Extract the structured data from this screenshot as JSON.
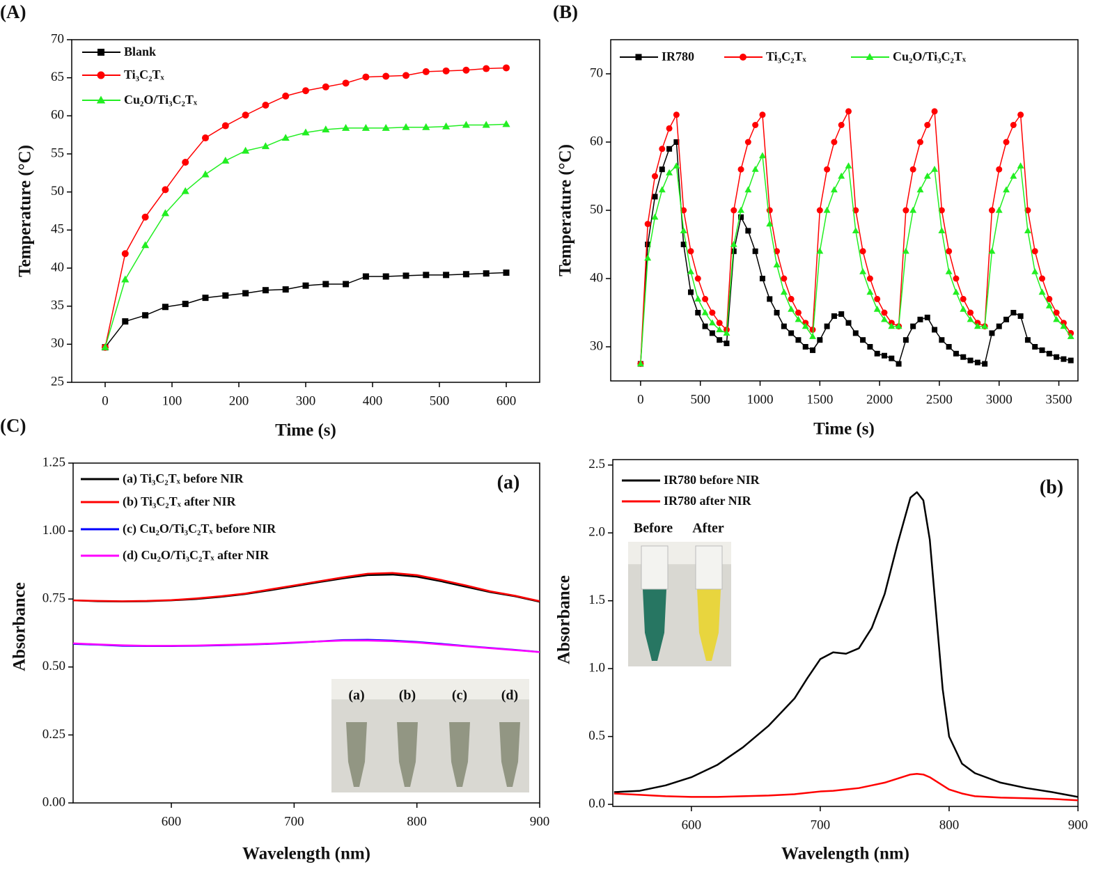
{
  "chart_data": [
    {
      "type": "line",
      "panel_label": "(A)",
      "x_label": "Time (s)",
      "y_label": "Temperature (°C)",
      "x": [
        0,
        30,
        60,
        90,
        120,
        150,
        180,
        210,
        240,
        270,
        300,
        330,
        360,
        390,
        420,
        450,
        480,
        510,
        540,
        570,
        600
      ],
      "xlim": [
        -50,
        650
      ],
      "xticks": [
        0,
        100,
        200,
        300,
        400,
        500,
        600
      ],
      "ylim": [
        25,
        70
      ],
      "yticks": [
        25,
        30,
        35,
        40,
        45,
        50,
        55,
        60,
        65,
        70
      ],
      "legend": "upper left",
      "series": [
        {
          "name": "Blank",
          "color": "#000000",
          "marker": "square",
          "values": [
            29.6,
            33,
            33.8,
            34.9,
            35.3,
            36.1,
            36.4,
            36.7,
            37.1,
            37.2,
            37.7,
            37.9,
            37.9,
            38.9,
            38.9,
            39.0,
            39.1,
            39.1,
            39.2,
            39.3,
            39.4
          ]
        },
        {
          "name": "Ti₃C₂Tₓ",
          "color": "#ff0000",
          "marker": "circle",
          "values": [
            29.6,
            41.9,
            46.7,
            50.3,
            53.9,
            57.1,
            58.7,
            60.1,
            61.4,
            62.6,
            63.3,
            63.8,
            64.3,
            65.1,
            65.2,
            65.3,
            65.8,
            65.9,
            66.0,
            66.2,
            66.3
          ]
        },
        {
          "name": "Cu₂O/Ti₃C₂Tₓ",
          "color": "#22ee22",
          "marker": "triangle",
          "values": [
            29.6,
            38.5,
            43.0,
            47.2,
            50.1,
            52.3,
            54.1,
            55.4,
            56.0,
            57.1,
            57.8,
            58.2,
            58.4,
            58.4,
            58.4,
            58.5,
            58.5,
            58.6,
            58.8,
            58.8,
            58.9
          ]
        }
      ]
    },
    {
      "type": "line",
      "panel_label": "(B)",
      "x_label": "Time (s)",
      "y_label": "Temperature (°C)",
      "x": [
        0,
        60,
        120,
        180,
        240,
        300,
        360,
        420,
        480,
        540,
        600,
        660,
        720,
        780,
        840,
        900,
        960,
        1020,
        1080,
        1140,
        1200,
        1260,
        1320,
        1380,
        1440,
        1500,
        1560,
        1620,
        1680,
        1740,
        1800,
        1860,
        1920,
        1980,
        2040,
        2100,
        2160,
        2220,
        2280,
        2340,
        2400,
        2460,
        2520,
        2580,
        2640,
        2700,
        2760,
        2820,
        2880,
        2940,
        3000,
        3060,
        3120,
        3180,
        3240,
        3300,
        3360,
        3420,
        3480,
        3540,
        3600
      ],
      "xlim": [
        -250,
        3660
      ],
      "xticks": [
        0,
        500,
        1000,
        1500,
        2000,
        2500,
        3000,
        3500
      ],
      "ylim": [
        25,
        75
      ],
      "yticks": [
        30,
        40,
        50,
        60,
        70
      ],
      "legend": "upper left",
      "series": [
        {
          "name": "IR780",
          "color": "#000000",
          "marker": "square",
          "values": [
            27.5,
            45,
            52,
            56,
            59,
            60,
            45,
            38,
            35,
            33,
            32,
            31,
            30.5,
            44,
            49,
            47,
            44,
            40,
            37,
            35,
            33,
            32,
            31,
            30,
            29.5,
            31,
            33,
            34.5,
            34.8,
            33.5,
            32,
            31,
            30,
            29,
            28.7,
            28.3,
            27.5,
            31,
            33,
            34,
            34.3,
            32.5,
            31,
            30,
            29,
            28.5,
            28,
            27.7,
            27.5,
            32,
            33,
            34,
            35,
            34.5,
            31,
            30,
            29.5,
            29,
            28.5,
            28.2,
            28
          ]
        },
        {
          "name": "Ti₃C₂Tₓ",
          "color": "#ff0000",
          "marker": "circle",
          "values": [
            27.5,
            48,
            55,
            59,
            62,
            64,
            50,
            44,
            40,
            37,
            35,
            33.5,
            32.5,
            50,
            56,
            60,
            62.5,
            64,
            50,
            44,
            40,
            37,
            35,
            33.5,
            32.5,
            50,
            56,
            60,
            62.5,
            64.5,
            50,
            44,
            40,
            37,
            35,
            33.5,
            33,
            50,
            56,
            60,
            62.5,
            64.5,
            50,
            44,
            40,
            37,
            35,
            33.5,
            33,
            50,
            56,
            60,
            62.5,
            64,
            50,
            44,
            40,
            37,
            35,
            33.5,
            32
          ]
        },
        {
          "name": "Cu₂O/Ti₃C₂Tₓ",
          "color": "#22ee22",
          "marker": "triangle",
          "values": [
            27.5,
            43,
            49,
            53,
            55.5,
            56.5,
            47,
            41,
            37,
            35,
            33.5,
            32.5,
            32,
            45,
            50,
            53,
            56,
            58,
            48,
            42,
            38,
            35.5,
            34,
            33,
            31.5,
            44,
            50,
            53,
            55,
            56.5,
            47,
            41,
            38,
            35.5,
            34,
            33,
            33,
            44,
            50,
            53,
            55,
            56,
            47,
            41,
            38,
            35.5,
            34,
            33,
            33,
            44,
            50,
            53,
            55,
            56.5,
            47,
            41,
            38,
            36,
            34,
            33,
            31.5
          ]
        }
      ]
    },
    {
      "type": "line",
      "panel_label": "(C)",
      "annotation": "(a)",
      "x_label": "Wavelength (nm)",
      "y_label": "Absorbance",
      "inset_labels": [
        "(a)",
        "(b)",
        "(c)",
        "(d)"
      ],
      "x": [
        520,
        540,
        560,
        580,
        600,
        620,
        640,
        660,
        680,
        700,
        720,
        740,
        760,
        780,
        800,
        820,
        840,
        860,
        880,
        900
      ],
      "xlim": [
        520,
        900
      ],
      "xticks": [
        600,
        700,
        800,
        900
      ],
      "ylim": [
        0,
        1.25
      ],
      "yticks": [
        {
          "value": 0,
          "label": "0.00"
        },
        0.25,
        {
          "value": 0.5,
          "label": "0.50"
        },
        0.75,
        {
          "value": 1,
          "label": "1.00"
        },
        1.25
      ],
      "legend": "upper left",
      "series": [
        {
          "name": "(a) Ti₃C₂Tₓ  before NIR",
          "color": "#000000",
          "values": [
            0.745,
            0.742,
            0.741,
            0.742,
            0.745,
            0.75,
            0.758,
            0.768,
            0.782,
            0.797,
            0.812,
            0.826,
            0.838,
            0.84,
            0.832,
            0.815,
            0.795,
            0.775,
            0.76,
            0.74
          ]
        },
        {
          "name": "(b) Ti₃C₂Tₓ  after NIR",
          "color": "#ff0000",
          "values": [
            0.745,
            0.743,
            0.742,
            0.743,
            0.746,
            0.752,
            0.76,
            0.77,
            0.785,
            0.8,
            0.815,
            0.83,
            0.843,
            0.846,
            0.838,
            0.82,
            0.8,
            0.778,
            0.762,
            0.742
          ]
        },
        {
          "name": "(c) Cu₂O/Ti₃C₂Tₓ  before NIR",
          "color": "#0000ff",
          "values": [
            0.585,
            0.582,
            0.578,
            0.577,
            0.577,
            0.578,
            0.58,
            0.582,
            0.585,
            0.589,
            0.594,
            0.599,
            0.6,
            0.597,
            0.592,
            0.585,
            0.577,
            0.57,
            0.563,
            0.555
          ]
        },
        {
          "name": "(d) Cu₂O/Ti₃C₂Tₓ  after NIR",
          "color": "#ff00ff",
          "values": [
            0.587,
            0.583,
            0.58,
            0.578,
            0.578,
            0.579,
            0.581,
            0.583,
            0.586,
            0.59,
            0.594,
            0.597,
            0.597,
            0.595,
            0.59,
            0.583,
            0.576,
            0.569,
            0.562,
            0.555
          ]
        }
      ]
    },
    {
      "type": "line",
      "annotation": "(b)",
      "x_label": "Wavelength (nm)",
      "y_label": "Absorbance",
      "inset_labels": [
        "Before",
        "After"
      ],
      "x": [
        540,
        560,
        580,
        600,
        620,
        640,
        660,
        680,
        690,
        700,
        710,
        720,
        730,
        740,
        750,
        760,
        770,
        775,
        780,
        785,
        790,
        795,
        800,
        810,
        820,
        840,
        860,
        880,
        900
      ],
      "xlim": [
        539,
        900
      ],
      "xticks": [
        600,
        700,
        800,
        900
      ],
      "ylim": [
        -0.015,
        2.54
      ],
      "yticks": [
        {
          "value": 0,
          "label": "0.0"
        },
        0.5,
        {
          "value": 1,
          "label": "1.0"
        },
        1.5,
        {
          "value": 2,
          "label": "2.0"
        },
        2.5
      ],
      "legend": "upper left",
      "series": [
        {
          "name": "IR780 before NIR",
          "color": "#000000",
          "values": [
            0.09,
            0.1,
            0.14,
            0.2,
            0.29,
            0.42,
            0.58,
            0.78,
            0.93,
            1.07,
            1.12,
            1.11,
            1.15,
            1.3,
            1.55,
            1.92,
            2.26,
            2.3,
            2.24,
            1.95,
            1.4,
            0.85,
            0.5,
            0.3,
            0.23,
            0.16,
            0.12,
            0.09,
            0.055
          ]
        },
        {
          "name": "IR780 after NIR",
          "color": "#ff0000",
          "values": [
            0.08,
            0.07,
            0.06,
            0.055,
            0.055,
            0.06,
            0.065,
            0.075,
            0.085,
            0.095,
            0.1,
            0.11,
            0.12,
            0.14,
            0.16,
            0.19,
            0.22,
            0.225,
            0.22,
            0.2,
            0.17,
            0.14,
            0.11,
            0.08,
            0.06,
            0.05,
            0.045,
            0.04,
            0.03
          ]
        }
      ]
    }
  ]
}
